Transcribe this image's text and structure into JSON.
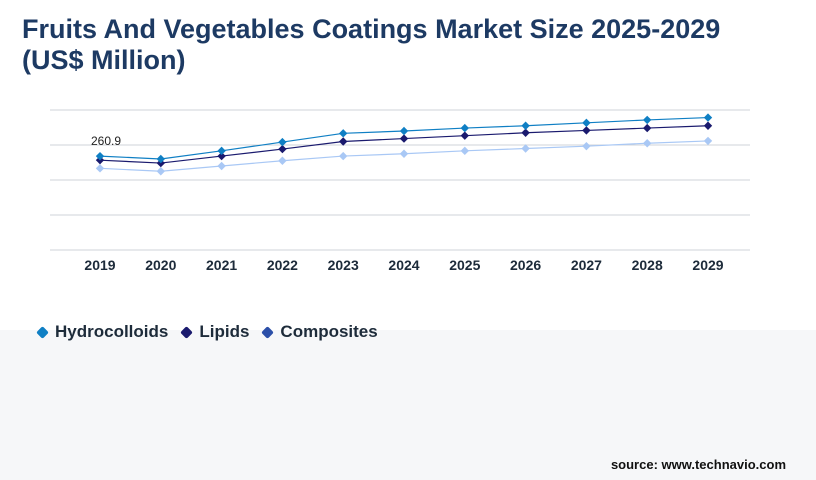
{
  "title": "Fruits And Vegetables Coatings Market Size 2025-2029 (US$ Million)",
  "source": "source: www.technavio.com",
  "colors": {
    "title": "#1d3a63",
    "grid": "#cfd3d8",
    "hydrocolloids": "#0f7fc4",
    "lipids": "#1a1a6e",
    "composites": "#a9c8f5"
  },
  "chart_data": {
    "type": "line",
    "title": "Fruits And Vegetables Coatings Market Size 2025-2029 (US$ Million)",
    "xlabel": "",
    "ylabel": "",
    "categories": [
      "2019",
      "2020",
      "2021",
      "2022",
      "2023",
      "2024",
      "2025",
      "2026",
      "2027",
      "2028",
      "2029"
    ],
    "annotations": [
      {
        "series": "Hydrocolloids",
        "category": "2019",
        "label": "260.9"
      }
    ],
    "series": [
      {
        "name": "Hydrocolloids",
        "values": [
          260.9,
          256,
          270,
          285,
          300,
          304,
          309,
          313,
          318,
          323,
          327
        ]
      },
      {
        "name": "Lipids",
        "values": [
          254,
          249,
          261,
          273,
          286,
          291,
          296,
          301,
          305,
          309,
          313
        ]
      },
      {
        "name": "Composites",
        "values": [
          240,
          235,
          244,
          253,
          261,
          265,
          270,
          274,
          278,
          283,
          287
        ]
      }
    ],
    "ylim": [
      100,
      340
    ],
    "grid": true,
    "legend": "bottom-left"
  }
}
